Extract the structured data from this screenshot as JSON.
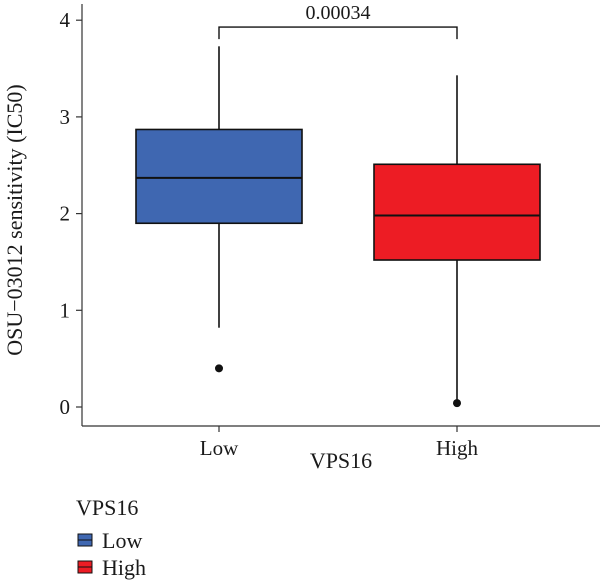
{
  "chart_data": {
    "type": "box",
    "xlabel": "VPS16",
    "ylabel": "OSU−03012 sensitivity (IC50)",
    "ylim": [
      -0.1,
      4.1
    ],
    "yticks": [
      0,
      1,
      2,
      3,
      4
    ],
    "ytick_labels": [
      "0",
      "1",
      "2",
      "3",
      "4"
    ],
    "categories": [
      "Low",
      "High"
    ],
    "series": [
      {
        "name": "Low",
        "color": "#3f67b1",
        "whisker_low": 0.82,
        "q1": 1.9,
        "median": 2.37,
        "q3": 2.87,
        "whisker_high": 3.73,
        "outliers": [
          0.4
        ]
      },
      {
        "name": "High",
        "color": "#ed1c24",
        "whisker_low": 0.04,
        "q1": 1.52,
        "median": 1.98,
        "q3": 2.51,
        "whisker_high": 3.43,
        "outliers": [
          0.04
        ]
      }
    ],
    "annotation": {
      "text": "0.00034",
      "between": [
        "Low",
        "High"
      ],
      "y": 3.97
    },
    "legend": {
      "title": "VPS16",
      "position": "bottom-left",
      "items": [
        {
          "label": "Low",
          "color": "#3f67b1"
        },
        {
          "label": "High",
          "color": "#ed1c24"
        }
      ]
    },
    "grid": false
  }
}
